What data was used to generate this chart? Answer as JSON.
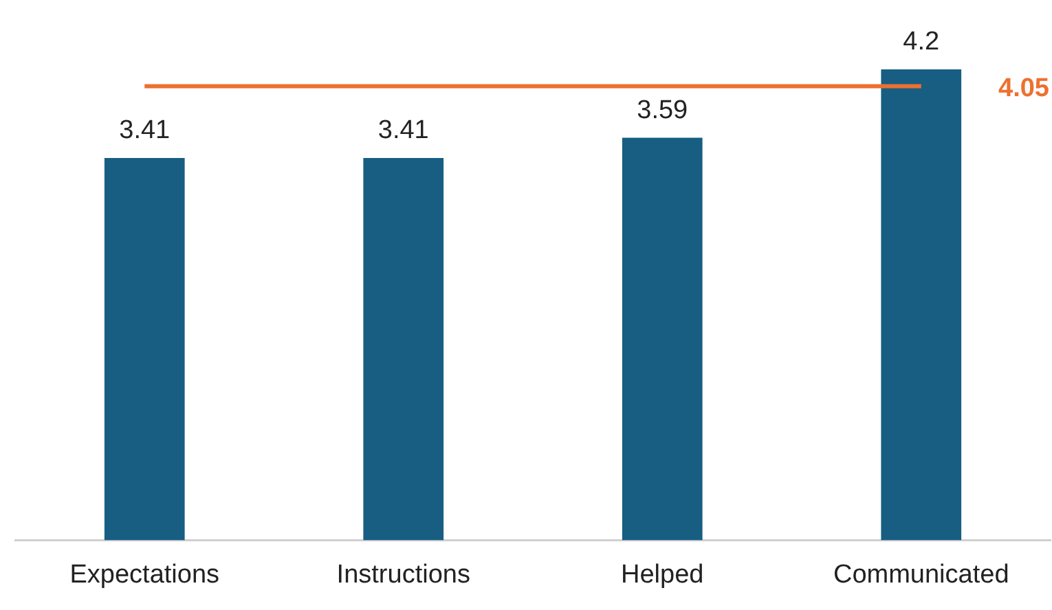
{
  "chart_data": {
    "type": "bar",
    "categories": [
      "Expectations",
      "Instructions",
      "Helped",
      "Communicated"
    ],
    "values": [
      3.41,
      3.41,
      3.59,
      4.2
    ],
    "color": "#175e82",
    "data_labels": true,
    "ref_lines": [
      {
        "axis": "y",
        "value": 4.05,
        "label": "4.05",
        "color": "#ed7030"
      }
    ]
  }
}
